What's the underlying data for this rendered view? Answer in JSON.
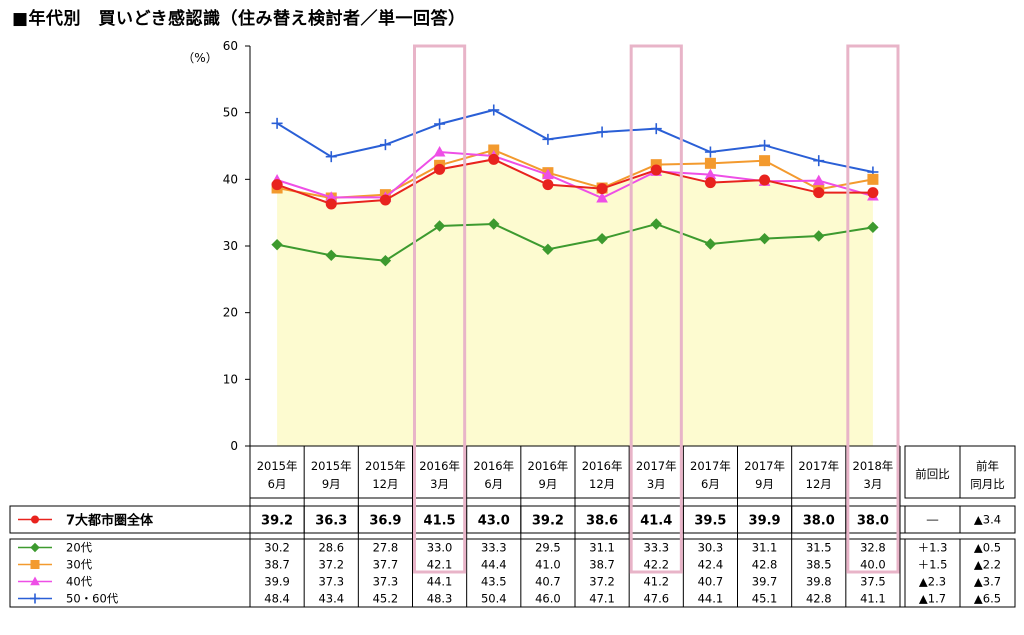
{
  "title": "■年代別　買いどき感認識（住み替え検討者／単一回答）",
  "chart_data": {
    "type": "line",
    "ylabel": "（%）",
    "ylim": [
      0,
      60
    ],
    "yticks": [
      0,
      10,
      20,
      30,
      40,
      50,
      60
    ],
    "categories": [
      [
        "2015年",
        "6月"
      ],
      [
        "2015年",
        "9月"
      ],
      [
        "2015年",
        "12月"
      ],
      [
        "2016年",
        "3月"
      ],
      [
        "2016年",
        "6月"
      ],
      [
        "2016年",
        "9月"
      ],
      [
        "2016年",
        "12月"
      ],
      [
        "2017年",
        "3月"
      ],
      [
        "2017年",
        "6月"
      ],
      [
        "2017年",
        "9月"
      ],
      [
        "2017年",
        "12月"
      ],
      [
        "2018年",
        "3月"
      ]
    ],
    "highlighted_categories": [
      3,
      7,
      11
    ],
    "series": [
      {
        "name": "7大都市圏全体",
        "color": "#e8231e",
        "marker": "circle",
        "area": true,
        "area_color": "#fdfbd0",
        "values": [
          39.2,
          36.3,
          36.9,
          41.5,
          43.0,
          39.2,
          38.6,
          41.4,
          39.5,
          39.9,
          38.0,
          38.0
        ],
        "labels": [
          "39.2",
          "36.3",
          "36.9",
          "41.5",
          "43.0",
          "39.2",
          "38.6",
          "41.4",
          "39.5",
          "39.9",
          "38.0",
          "38.0"
        ],
        "prev_period": "―",
        "prev_year": "▲3.4"
      },
      {
        "name": "20代",
        "color": "#3d9a2f",
        "marker": "diamond",
        "values": [
          30.2,
          28.6,
          27.8,
          33.0,
          33.3,
          29.5,
          31.1,
          33.3,
          30.3,
          31.1,
          31.5,
          32.8
        ],
        "labels": [
          "30.2",
          "28.6",
          "27.8",
          "33.0",
          "33.3",
          "29.5",
          "31.1",
          "33.3",
          "30.3",
          "31.1",
          "31.5",
          "32.8"
        ],
        "prev_period": "＋1.3",
        "prev_year": "▲0.5"
      },
      {
        "name": "30代",
        "color": "#f39a2e",
        "marker": "square",
        "values": [
          38.7,
          37.2,
          37.7,
          42.1,
          44.4,
          41.0,
          38.7,
          42.2,
          42.4,
          42.8,
          38.5,
          40.0
        ],
        "labels": [
          "38.7",
          "37.2",
          "37.7",
          "42.1",
          "44.4",
          "41.0",
          "38.7",
          "42.2",
          "42.4",
          "42.8",
          "38.5",
          "40.0"
        ],
        "prev_period": "＋1.5",
        "prev_year": "▲2.2"
      },
      {
        "name": "40代",
        "color": "#ee4fe6",
        "marker": "triangle",
        "values": [
          39.9,
          37.3,
          37.3,
          44.1,
          43.5,
          40.7,
          37.2,
          41.2,
          40.7,
          39.7,
          39.8,
          37.5
        ],
        "labels": [
          "39.9",
          "37.3",
          "37.3",
          "44.1",
          "43.5",
          "40.7",
          "37.2",
          "41.2",
          "40.7",
          "39.7",
          "39.8",
          "37.5"
        ],
        "prev_period": "▲2.3",
        "prev_year": "▲3.7"
      },
      {
        "name": "50・60代",
        "color": "#2a5fd6",
        "marker": "plus",
        "values": [
          48.4,
          43.4,
          45.2,
          48.3,
          50.4,
          46.0,
          47.1,
          47.6,
          44.1,
          45.1,
          42.8,
          41.1
        ],
        "labels": [
          "48.4",
          "43.4",
          "45.2",
          "48.3",
          "50.4",
          "46.0",
          "47.1",
          "47.6",
          "44.1",
          "45.1",
          "42.8",
          "41.1"
        ],
        "prev_period": "▲1.7",
        "prev_year": "▲6.5"
      }
    ],
    "extra_columns": [
      {
        "lines": [
          "前回比"
        ]
      },
      {
        "lines": [
          "前年",
          "同月比"
        ]
      }
    ],
    "highlight_color": "#e8b4c8"
  }
}
